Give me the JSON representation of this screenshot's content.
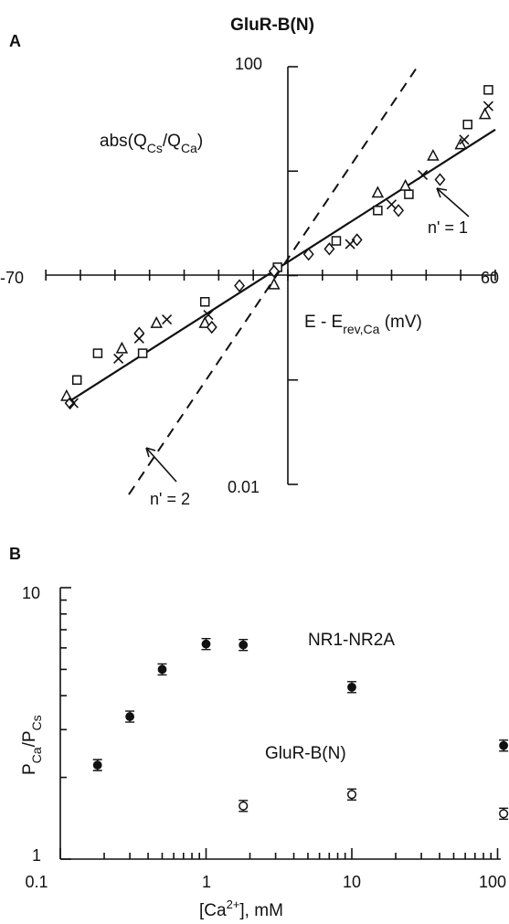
{
  "chart_data": [
    {
      "panel": "A",
      "type": "scatter",
      "title": "GluR-B(N)",
      "ylabel": "abs(Q_Cs/Q_Ca)",
      "ylabel_main": "abs(Q",
      "ylabel_sub1": "Cs",
      "ylabel_mid": "/Q",
      "ylabel_sub2": "Ca",
      "ylabel_end": ")",
      "xlabel": "E - E_rev,Ca (mV)",
      "xlabel_main": "E - E",
      "xlabel_sub": "rev,Ca",
      "xlabel_end": " (mV)",
      "xlim": [
        -70,
        60
      ],
      "ylim": [
        0.01,
        100
      ],
      "yscale": "log",
      "x_tick_labels": [
        "-70",
        "60"
      ],
      "y_tick_labels": [
        "100",
        "0.01"
      ],
      "annotations": [
        "n' = 1",
        "n' = 2"
      ],
      "lines": [
        {
          "name": "n' = 1",
          "style": "solid",
          "x": [
            -64,
            60
          ],
          "y": [
            0.06,
            25
          ]
        },
        {
          "name": "n' = 2",
          "style": "dashed",
          "x": [
            -46,
            37
          ],
          "y": [
            0.008,
            95
          ]
        }
      ],
      "series": [
        {
          "marker": "square",
          "points": [
            [
              -61,
              0.1
            ],
            [
              -55,
              0.18
            ],
            [
              -42,
              0.18
            ],
            [
              -24,
              0.56
            ],
            [
              -3,
              1.2
            ],
            [
              14,
              2.15
            ],
            [
              26,
              4.2
            ],
            [
              35,
              6
            ],
            [
              52,
              28
            ],
            [
              58,
              60
            ]
          ]
        },
        {
          "marker": "triangle",
          "points": [
            [
              -64,
              0.07
            ],
            [
              -48,
              0.2
            ],
            [
              -38,
              0.35
            ],
            [
              -24,
              0.35
            ],
            [
              -4,
              0.82
            ],
            [
              26,
              6.2
            ],
            [
              34,
              7.2
            ],
            [
              42,
              14
            ],
            [
              50,
              18
            ],
            [
              57,
              35
            ]
          ]
        },
        {
          "marker": "diamond",
          "points": [
            [
              -63,
              0.06
            ],
            [
              -43,
              0.28
            ],
            [
              -22,
              0.32
            ],
            [
              -14,
              0.8
            ],
            [
              -4,
              1.1
            ],
            [
              6,
              1.6
            ],
            [
              12,
              1.8
            ],
            [
              20,
              2.2
            ],
            [
              32,
              4.2
            ],
            [
              44,
              8.3
            ]
          ]
        },
        {
          "marker": "x",
          "points": [
            [
              -62,
              0.06
            ],
            [
              -49,
              0.16
            ],
            [
              -43,
              0.25
            ],
            [
              -35,
              0.38
            ],
            [
              -23,
              0.42
            ],
            [
              18,
              2.0
            ],
            [
              30,
              4.8
            ],
            [
              39,
              9.2
            ],
            [
              51,
              20
            ],
            [
              58,
              42
            ]
          ]
        }
      ]
    },
    {
      "panel": "B",
      "type": "scatter",
      "ylabel": "P_Ca/P_Cs",
      "ylabel_main": "P",
      "ylabel_sub1": "Ca",
      "ylabel_mid": "/P",
      "ylabel_sub2": "Cs",
      "xlabel": "[Ca2+], mM",
      "xlabel_main": "[Ca",
      "xlabel_sup": "2+",
      "xlabel_end": "], mM",
      "xscale": "log",
      "yscale": "log",
      "xlim": [
        0.1,
        100
      ],
      "ylim": [
        1,
        10
      ],
      "x_tick_labels": [
        "0.1",
        "1",
        "10",
        "100"
      ],
      "y_tick_labels": [
        "10",
        "1"
      ],
      "series": [
        {
          "name": "NR1-NR2A",
          "marker": "filled-circle",
          "x": [
            0.18,
            0.3,
            0.5,
            1.0,
            1.8,
            10,
            110
          ],
          "y": [
            2.22,
            3.35,
            5.0,
            6.2,
            6.15,
            4.3,
            2.62
          ]
        },
        {
          "name": "GluR-B(N)",
          "marker": "open-circle",
          "x": [
            1.8,
            10,
            110
          ],
          "y": [
            1.57,
            1.73,
            1.47
          ]
        }
      ]
    }
  ],
  "labels": {
    "panel_a": "A",
    "panel_b": "B"
  }
}
